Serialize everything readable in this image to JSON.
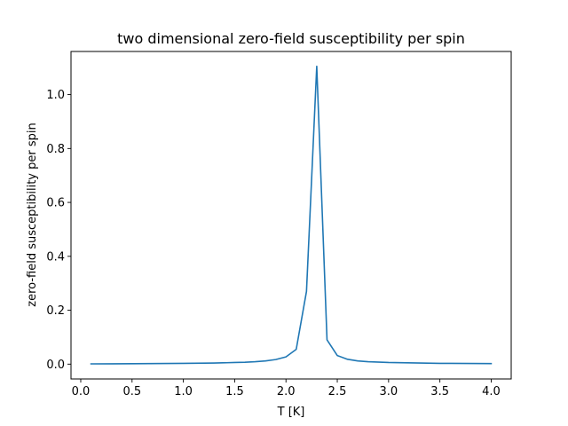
{
  "chart_data": {
    "type": "line",
    "title": "two dimensional zero-field susceptibility per spin",
    "xlabel": "T [K]",
    "ylabel": "zero-field susceptibility per spin",
    "xlim": [
      -0.095,
      4.195
    ],
    "ylim": [
      -0.055,
      1.16
    ],
    "xticks": [
      0.0,
      0.5,
      1.0,
      1.5,
      2.0,
      2.5,
      3.0,
      3.5,
      4.0
    ],
    "xtick_labels": [
      "0.0",
      "0.5",
      "1.0",
      "1.5",
      "2.0",
      "2.5",
      "3.0",
      "3.5",
      "4.0"
    ],
    "yticks": [
      0.0,
      0.2,
      0.4,
      0.6,
      0.8,
      1.0
    ],
    "ytick_labels": [
      "0.0",
      "0.2",
      "0.4",
      "0.6",
      "0.8",
      "1.0"
    ],
    "grid": false,
    "line_color": "#1f77b4",
    "series": [
      {
        "x": [
          0.1,
          0.5,
          1.0,
          1.3,
          1.5,
          1.6,
          1.7,
          1.8,
          1.9,
          2.0,
          2.1,
          2.2,
          2.3,
          2.4,
          2.5,
          2.6,
          2.7,
          2.8,
          3.0,
          3.5,
          4.0
        ],
        "values": [
          0.001,
          0.0015,
          0.003,
          0.004,
          0.006,
          0.007,
          0.009,
          0.012,
          0.017,
          0.027,
          0.055,
          0.27,
          1.105,
          0.09,
          0.032,
          0.018,
          0.012,
          0.009,
          0.006,
          0.003,
          0.002
        ]
      }
    ]
  }
}
